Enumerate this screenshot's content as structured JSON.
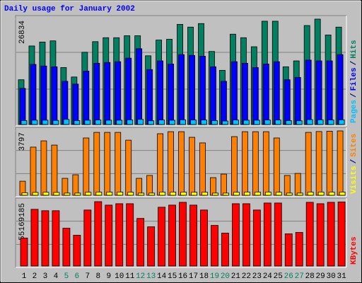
{
  "chart_data": [
    {
      "type": "bar",
      "title": "Daily usage for January 2002",
      "ylim": [
        0,
        26834
      ],
      "yticks": [
        26834
      ],
      "legend_separator": "/",
      "series": [
        {
          "name": "Hits",
          "color": "#008060",
          "values": [
            11400,
            20000,
            21000,
            21300,
            14500,
            12100,
            18400,
            21100,
            22100,
            22100,
            22600,
            22600,
            17500,
            21500,
            21700,
            25500,
            24800,
            25700,
            18600,
            13800,
            23000,
            22100,
            19800,
            26300,
            26300,
            14700,
            16200,
            25200,
            26834,
            22800,
            24800
          ]
        },
        {
          "name": "Files",
          "color": "#0000ff",
          "values": [
            9200,
            15300,
            14900,
            14700,
            11000,
            10300,
            13600,
            15600,
            15800,
            16000,
            16900,
            19300,
            14000,
            16200,
            15400,
            17800,
            17600,
            17400,
            14700,
            11000,
            16000,
            15600,
            14500,
            15400,
            16000,
            11400,
            12000,
            16400,
            16200,
            16200,
            17800
          ]
        },
        {
          "name": "Pages",
          "color": "#00c0ff",
          "values": [
            1000,
            1100,
            1100,
            1050,
            1300,
            1000,
            1100,
            1150,
            1100,
            1100,
            1200,
            1300,
            950,
            1150,
            1100,
            1200,
            1150,
            1150,
            1000,
            900,
            1150,
            1100,
            1100,
            1150,
            1150,
            1000,
            950,
            1250,
            1200,
            1150,
            1200
          ]
        }
      ]
    },
    {
      "type": "bar",
      "ylim": [
        0,
        3797
      ],
      "yticks": [
        3797
      ],
      "legend_separator": "/",
      "series": [
        {
          "name": "Sites",
          "color": "#ff8000",
          "values": [
            830,
            2840,
            3210,
            2960,
            1000,
            1210,
            3380,
            3710,
            3710,
            3710,
            3250,
            1000,
            1170,
            3630,
            3750,
            3750,
            3420,
            3090,
            1040,
            1250,
            3460,
            3750,
            3750,
            3750,
            3380,
            1170,
            1290,
            3710,
            3760,
            3780,
            3797
          ]
        },
        {
          "name": "Visits",
          "color": "#ffff00",
          "values": [
            150,
            170,
            180,
            170,
            130,
            130,
            180,
            190,
            190,
            190,
            180,
            130,
            130,
            190,
            190,
            190,
            180,
            180,
            130,
            130,
            180,
            190,
            190,
            190,
            180,
            130,
            130,
            190,
            190,
            190,
            190
          ]
        }
      ]
    },
    {
      "type": "bar",
      "ylim": [
        0,
        55169185
      ],
      "yticks": [
        55169185
      ],
      "categories": [
        "1",
        "2",
        "3",
        "4",
        "5",
        "6",
        "7",
        "8",
        "9",
        "10",
        "11",
        "12",
        "13",
        "14",
        "15",
        "16",
        "17",
        "18",
        "19",
        "20",
        "21",
        "22",
        "23",
        "24",
        "25",
        "26",
        "27",
        "28",
        "29",
        "30",
        "31"
      ],
      "category_colors": [
        "#000000",
        "#000000",
        "#000000",
        "#000000",
        "#008060",
        "#008060",
        "#000000",
        "#000000",
        "#000000",
        "#000000",
        "#000000",
        "#008060",
        "#008060",
        "#000000",
        "#000000",
        "#000000",
        "#000000",
        "#000000",
        "#008060",
        "#008060",
        "#000000",
        "#000000",
        "#000000",
        "#000000",
        "#000000",
        "#008060",
        "#008060",
        "#000000",
        "#000000",
        "#000000",
        "#000000"
      ],
      "series": [
        {
          "name": "KBytes",
          "color": "#ff0000",
          "values": [
            24000000,
            48600000,
            47400000,
            47400000,
            32400000,
            26400000,
            48000000,
            55169185,
            52200000,
            53400000,
            53400000,
            40800000,
            33600000,
            50400000,
            52200000,
            54600000,
            52200000,
            48000000,
            34800000,
            28200000,
            53400000,
            53400000,
            48000000,
            54000000,
            54000000,
            27600000,
            28800000,
            54600000,
            53400000,
            54600000,
            54900000
          ]
        }
      ]
    }
  ]
}
